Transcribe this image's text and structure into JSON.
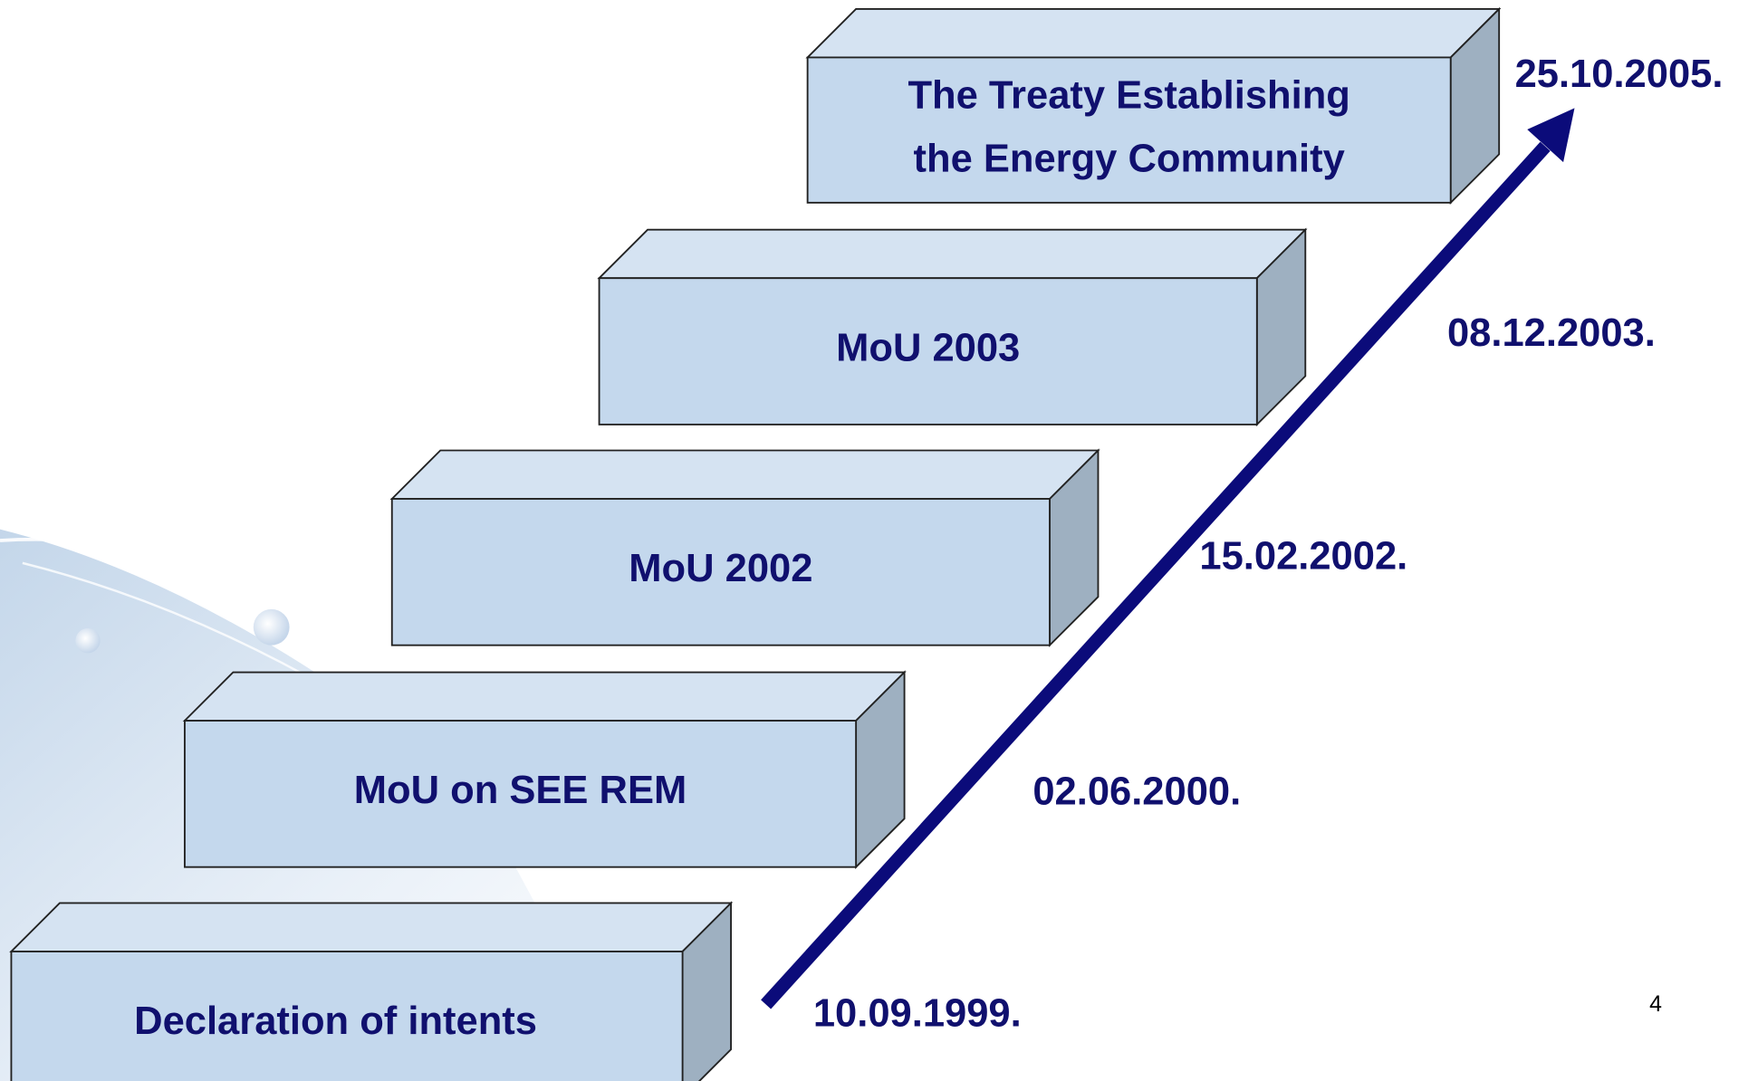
{
  "steps": [
    {
      "lines": [
        "Declaration of intents"
      ],
      "date": "10.09.1999."
    },
    {
      "lines": [
        "MoU on SEE REM"
      ],
      "date": "02.06.2000."
    },
    {
      "lines": [
        "MoU 2002"
      ],
      "date": "15.02.2002."
    },
    {
      "lines": [
        "MoU 2003"
      ],
      "date": "08.12.2003."
    },
    {
      "lines": [
        "The Treaty Establishing",
        "the Energy Community"
      ],
      "date": "25.10.2005."
    }
  ],
  "page_number": "4"
}
